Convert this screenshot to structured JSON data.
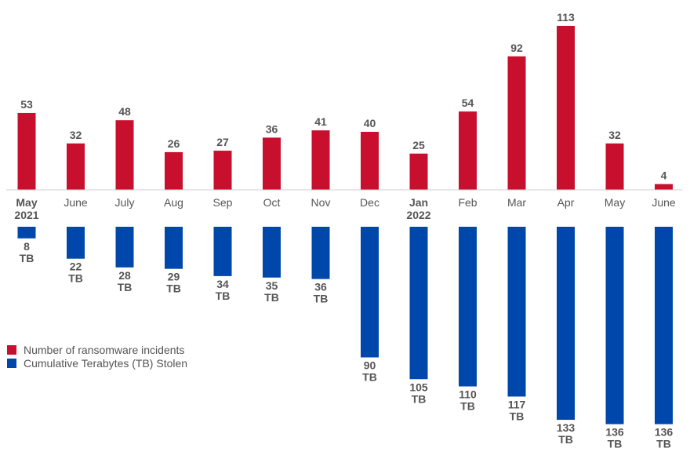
{
  "chart_data": {
    "type": "bar",
    "categories": [
      {
        "line1": "May",
        "line2": "2021",
        "bold": true
      },
      {
        "line1": "June",
        "line2": "",
        "bold": false
      },
      {
        "line1": "July",
        "line2": "",
        "bold": false
      },
      {
        "line1": "Aug",
        "line2": "",
        "bold": false
      },
      {
        "line1": "Sep",
        "line2": "",
        "bold": false
      },
      {
        "line1": "Oct",
        "line2": "",
        "bold": false
      },
      {
        "line1": "Nov",
        "line2": "",
        "bold": false
      },
      {
        "line1": "Dec",
        "line2": "",
        "bold": false
      },
      {
        "line1": "Jan",
        "line2": "2022",
        "bold": true
      },
      {
        "line1": "Feb",
        "line2": "",
        "bold": false
      },
      {
        "line1": "Mar",
        "line2": "",
        "bold": false
      },
      {
        "line1": "Apr",
        "line2": "",
        "bold": false
      },
      {
        "line1": "May",
        "line2": "",
        "bold": false
      },
      {
        "line1": "June",
        "line2": "",
        "bold": false
      }
    ],
    "series": [
      {
        "name": "Number of ransomware incidents",
        "color": "#c8102e",
        "direction": "up",
        "values": [
          53,
          32,
          48,
          26,
          27,
          36,
          41,
          40,
          25,
          54,
          92,
          113,
          32,
          4
        ],
        "unit": ""
      },
      {
        "name": "Cumulative Terabytes (TB) Stolen",
        "color": "#0047ab",
        "direction": "down",
        "values": [
          8,
          22,
          28,
          29,
          34,
          35,
          36,
          90,
          105,
          110,
          117,
          133,
          136,
          136
        ],
        "unit": "TB"
      }
    ],
    "legend": "left",
    "grid": false
  }
}
